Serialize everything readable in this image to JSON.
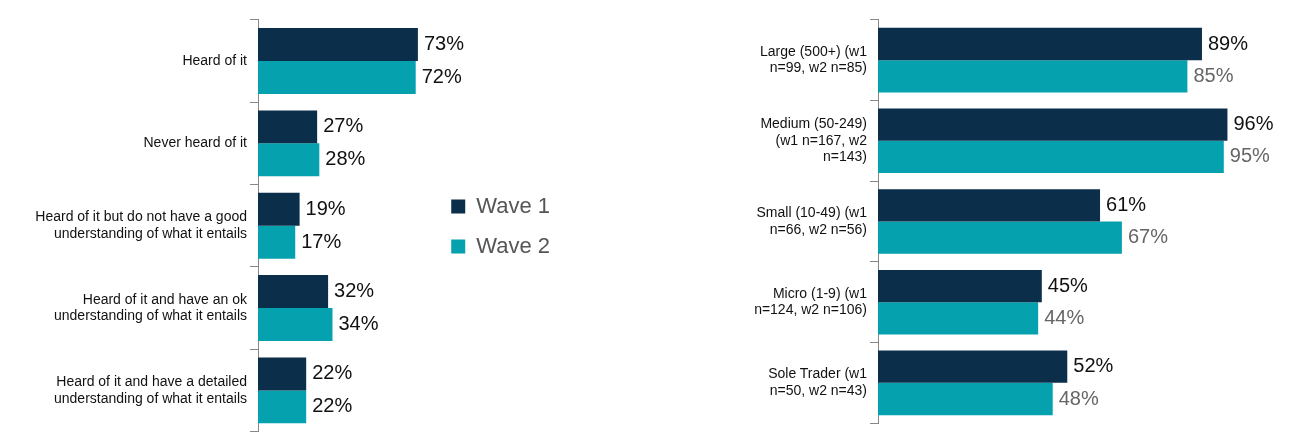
{
  "chart_data": [
    {
      "type": "bar",
      "orientation": "horizontal",
      "categories": [
        "Heard of it",
        "Never heard of it",
        "Heard of it but do not have a good understanding of what it entails",
        "Heard of it and have an ok understanding of what it entails",
        "Heard of it and have a detailed understanding of what it entails"
      ],
      "tick_labels": "y",
      "grid": false,
      "legend": "right",
      "series": [
        {
          "name": "Wave 1",
          "color": "#0b2f4b",
          "values": [
            73,
            27,
            19,
            32,
            22
          ],
          "value_labels": [
            "73%",
            "27%",
            "19%",
            "32%",
            "22%"
          ]
        },
        {
          "name": "Wave 2",
          "color": "#05a1ae",
          "values": [
            72,
            28,
            17,
            34,
            22
          ],
          "value_labels": [
            "72%",
            "28%",
            "17%",
            "34%",
            "22%"
          ]
        }
      ]
    },
    {
      "type": "bar",
      "orientation": "horizontal",
      "categories": [
        "Large (500+) (w1 n=99, w2 n=85)",
        "Medium (50-249) (w1 n=167, w2 n=143)",
        "Small (10-49) (w1 n=66, w2 n=56)",
        "Micro (1-9) (w1 n=124, w2 n=106)",
        "Sole Trader (w1 n=50, w2 n=43)"
      ],
      "tick_labels": "y",
      "grid": false,
      "legend": false,
      "series": [
        {
          "color": "#0b2f4b",
          "values": [
            89,
            96,
            61,
            45,
            52
          ],
          "value_labels": [
            "89%",
            "96%",
            "61%",
            "45%",
            "52%"
          ]
        },
        {
          "color": "#05a1ae",
          "values": [
            85,
            95,
            67,
            44,
            48
          ],
          "value_labels": [
            "85%",
            "95%",
            "67%",
            "44%",
            "48%"
          ]
        }
      ]
    }
  ]
}
